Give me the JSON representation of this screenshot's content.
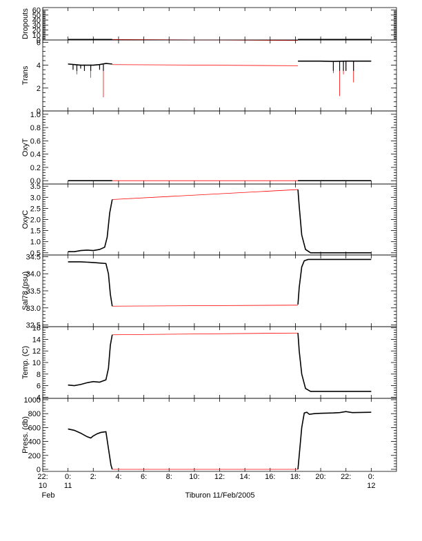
{
  "chart_data": {
    "type": "line",
    "title": "Tiburon 11/Feb/2005",
    "x_axis": {
      "unit": "hours since 2005-02-11 00:00",
      "range": [
        -2,
        26
      ],
      "ticks": [
        {
          "x": -2,
          "label": "22:",
          "sub": "10",
          "sub2": "Feb"
        },
        {
          "x": 0,
          "label": "0:",
          "sub": "11"
        },
        {
          "x": 2,
          "label": "2:"
        },
        {
          "x": 4,
          "label": "4:"
        },
        {
          "x": 6,
          "label": "6:"
        },
        {
          "x": 8,
          "label": "8:"
        },
        {
          "x": 10,
          "label": "10:"
        },
        {
          "x": 12,
          "label": "12:"
        },
        {
          "x": 14,
          "label": "14:"
        },
        {
          "x": 16,
          "label": "16:"
        },
        {
          "x": 18,
          "label": "18:"
        },
        {
          "x": 20,
          "label": "20:"
        },
        {
          "x": 22,
          "label": "22:"
        },
        {
          "x": 24,
          "label": "0:",
          "sub": "12"
        }
      ]
    },
    "panels": [
      {
        "name": "dropouts",
        "ylabel": "Dropouts",
        "ylim": [
          0,
          65
        ],
        "ytick_labels": [
          "0",
          "10",
          "20",
          "30",
          "40",
          "50",
          "60"
        ],
        "ytick_values": [
          0,
          10,
          20,
          30,
          40,
          50,
          60
        ],
        "segments": [
          {
            "x": [
              0,
              3.5
            ],
            "y": [
              1,
              1
            ]
          },
          {
            "x": [
              18.2,
              24
            ],
            "y": [
              1,
              1
            ]
          }
        ],
        "gap_line": {
          "x": [
            3.5,
            18.2
          ],
          "y": [
            1,
            -1
          ]
        },
        "spikes": []
      },
      {
        "name": "trans",
        "ylabel": "Trans",
        "ylim": [
          0,
          6.2
        ],
        "ytick_labels": [
          "0",
          "2",
          "4",
          "6"
        ],
        "ytick_values": [
          0,
          2,
          4,
          6
        ],
        "segments": [
          {
            "x": [
              0,
              0.5,
              1.0,
              1.5,
              2.0,
              2.5,
              3.0,
              3.5
            ],
            "y": [
              4.1,
              4.05,
              4.0,
              4.0,
              4.0,
              4.05,
              4.15,
              4.1
            ]
          },
          {
            "x": [
              18.2,
              19,
              20,
              21,
              22,
              23,
              24
            ],
            "y": [
              4.35,
              4.35,
              4.35,
              4.33,
              4.35,
              4.35,
              4.35
            ]
          }
        ],
        "gap_line": {
          "x": [
            3.5,
            18.2
          ],
          "y": [
            4.05,
            3.95
          ]
        },
        "spikes": [
          {
            "x": 0.4,
            "y": 3.6
          },
          {
            "x": 0.7,
            "y": 3.2
          },
          {
            "x": 1.0,
            "y": 3.7
          },
          {
            "x": 1.3,
            "y": 3.5
          },
          {
            "x": 1.8,
            "y": 2.9
          },
          {
            "x": 2.5,
            "y": 3.6
          },
          {
            "x": 2.8,
            "y": 1.2
          },
          {
            "x": 21.0,
            "y": 3.3
          },
          {
            "x": 21.5,
            "y": 1.3
          },
          {
            "x": 21.8,
            "y": 3.2
          },
          {
            "x": 22.0,
            "y": 3.5
          },
          {
            "x": 22.6,
            "y": 2.5
          }
        ]
      },
      {
        "name": "oxyt",
        "ylabel": "OxyT",
        "ylim": [
          -0.05,
          1.05
        ],
        "ytick_labels": [
          "0.0",
          "0.2",
          "0.4",
          "0.6",
          "0.8",
          "1.0"
        ],
        "ytick_values": [
          0.0,
          0.2,
          0.4,
          0.6,
          0.8,
          1.0
        ],
        "segments": [
          {
            "x": [
              0,
              3.5
            ],
            "y": [
              0.0,
              0.0
            ]
          },
          {
            "x": [
              18.2,
              24
            ],
            "y": [
              0.0,
              0.0
            ]
          }
        ],
        "gap_line": {
          "x": [
            3.5,
            18.2
          ],
          "y": [
            0.0,
            0.0
          ]
        },
        "spikes": []
      },
      {
        "name": "oxyc",
        "ylabel": "OxyC",
        "ylim": [
          0.4,
          3.6
        ],
        "ytick_labels": [
          "0.5",
          "1.0",
          "1.5",
          "2.0",
          "2.5",
          "3.0",
          "3.5"
        ],
        "ytick_values": [
          0.5,
          1.0,
          1.5,
          2.0,
          2.5,
          3.0,
          3.5
        ],
        "segments": [
          {
            "x": [
              0,
              0.5,
              1.0,
              1.5,
              2.0,
              2.5,
              2.9,
              3.1,
              3.3,
              3.5
            ],
            "y": [
              0.55,
              0.55,
              0.6,
              0.62,
              0.6,
              0.65,
              0.75,
              1.2,
              2.3,
              2.9
            ]
          },
          {
            "x": [
              18.2,
              18.3,
              18.5,
              18.8,
              19.2,
              20,
              22,
              24
            ],
            "y": [
              3.35,
              2.6,
              1.3,
              0.65,
              0.5,
              0.5,
              0.5,
              0.5
            ]
          }
        ],
        "gap_line": {
          "x": [
            3.5,
            18.2
          ],
          "y": [
            2.9,
            3.35
          ]
        },
        "spikes": []
      },
      {
        "name": "sal78",
        "ylabel": "Sal78 (psu)",
        "ylim": [
          32.45,
          34.55
        ],
        "ytick_labels": [
          "32.5",
          "33.0",
          "33.5",
          "34.0",
          "34.5"
        ],
        "ytick_values": [
          32.5,
          33.0,
          33.5,
          34.0,
          34.5
        ],
        "segments": [
          {
            "x": [
              0,
              1.0,
              2.0,
              3.0,
              3.2,
              3.35,
              3.5
            ],
            "y": [
              34.35,
              34.35,
              34.33,
              34.3,
              34.0,
              33.4,
              33.05
            ]
          },
          {
            "x": [
              18.2,
              18.3,
              18.5,
              18.7,
              19.0,
              20,
              22,
              24
            ],
            "y": [
              33.1,
              33.6,
              34.2,
              34.38,
              34.42,
              34.42,
              34.42,
              34.42
            ]
          }
        ],
        "gap_line": {
          "x": [
            3.5,
            18.2
          ],
          "y": [
            33.05,
            33.08
          ]
        },
        "spikes": []
      },
      {
        "name": "temp",
        "ylabel": "Temp. (C)",
        "ylim": [
          3.8,
          16.2
        ],
        "ytick_labels": [
          "4",
          "6",
          "8",
          "10",
          "12",
          "14",
          "16"
        ],
        "ytick_values": [
          4,
          6,
          8,
          10,
          12,
          14,
          16
        ],
        "segments": [
          {
            "x": [
              0,
              0.5,
              1.0,
              1.5,
              2.0,
              2.5,
              3.0,
              3.2,
              3.35,
              3.5
            ],
            "y": [
              6.1,
              6.0,
              6.2,
              6.5,
              6.7,
              6.6,
              7.0,
              9.0,
              13.0,
              14.8
            ]
          },
          {
            "x": [
              18.2,
              18.3,
              18.5,
              18.8,
              19.2,
              20,
              22,
              24
            ],
            "y": [
              15.1,
              12.0,
              8.0,
              5.5,
              5.0,
              5.0,
              5.0,
              5.0
            ]
          }
        ],
        "gap_line": {
          "x": [
            3.5,
            18.2
          ],
          "y": [
            14.8,
            15.1
          ]
        },
        "spikes": []
      },
      {
        "name": "press",
        "ylabel": "Press. (db)",
        "ylim": [
          -30,
          1020
        ],
        "ytick_labels": [
          "0",
          "200",
          "400",
          "600",
          "800",
          "1000"
        ],
        "ytick_values": [
          0,
          200,
          400,
          600,
          800,
          1000
        ],
        "segments": [
          {
            "x": [
              0,
              0.5,
              1.0,
              1.5,
              1.8,
              2.0,
              2.3,
              2.6,
              3.0,
              3.2,
              3.4,
              3.5
            ],
            "y": [
              580,
              560,
              520,
              470,
              450,
              480,
              510,
              530,
              540,
              300,
              60,
              0
            ]
          },
          {
            "x": [
              18.2,
              18.3,
              18.5,
              18.7,
              18.9,
              19.1,
              19.5,
              20,
              21,
              21.5,
              22,
              22.5,
              24
            ],
            "y": [
              0,
              200,
              600,
              810,
              820,
              790,
              800,
              805,
              810,
              815,
              830,
              815,
              820
            ]
          }
        ],
        "gap_line": {
          "x": [
            3.5,
            18.2
          ],
          "y": [
            0,
            0
          ]
        },
        "spikes": []
      }
    ]
  }
}
